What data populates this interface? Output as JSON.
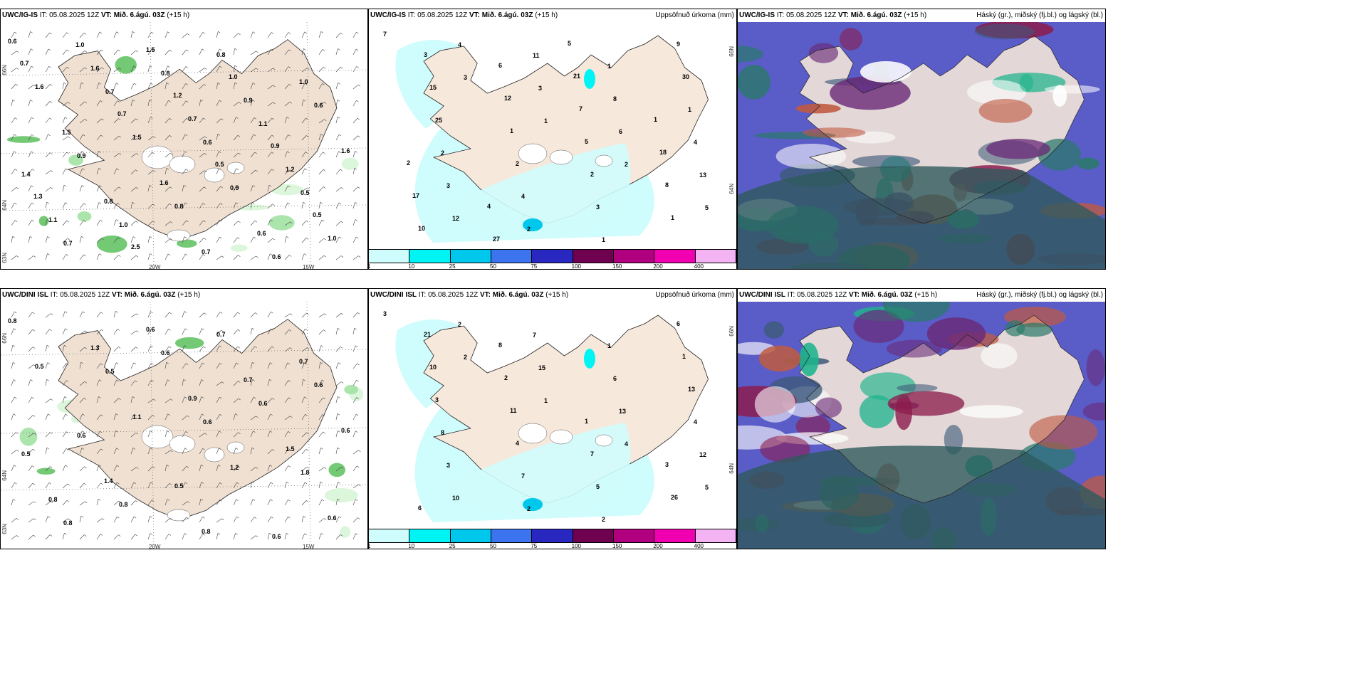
{
  "rows": [
    {
      "wind_panel": {
        "model": "UWC/IG-IS",
        "it_label": "IT:",
        "it": "05.08.2025 12Z",
        "vt_label": "VT:",
        "vt": "Mið. 6.ágú. 03Z",
        "lead": "(+15 h)"
      },
      "precip_panel": {
        "model": "UWC/IG-IS",
        "it_label": "IT:",
        "it": "05.08.2025 12Z",
        "vt_label": "VT:",
        "vt": "Mið. 6.ágú. 03Z",
        "lead": "(+15 h)",
        "right_title": "Uppsöfnuð úrkoma (mm)"
      },
      "cloud_panel": {
        "model": "UWC/IG-IS",
        "it_label": "IT:",
        "it": "05.08.2025 12Z",
        "vt_label": "VT:",
        "vt": "Mið. 6.ágú. 03Z",
        "lead": "(+15 h)",
        "right_title": "Háský (gr.), miðský (fj.bl.) og lágský (bl.)"
      }
    },
    {
      "wind_panel": {
        "model": "UWC/DINI ISL",
        "it_label": "IT:",
        "it": "05.08.2025 12Z",
        "vt_label": "VT:",
        "vt": "Mið. 6.ágú. 03Z",
        "lead": "(+15 h)"
      },
      "precip_panel": {
        "model": "UWC/DINI ISL",
        "it_label": "IT:",
        "it": "05.08.2025 12Z",
        "vt_label": "VT:",
        "vt": "Mið. 6.ágú. 03Z",
        "lead": "(+15 h)",
        "right_title": "Uppsöfnuð úrkoma (mm)"
      },
      "cloud_panel": {
        "model": "UWC/DINI ISL",
        "it_label": "IT:",
        "it": "05.08.2025 12Z",
        "vt_label": "VT:",
        "vt": "Mið. 6.ágú. 03Z",
        "lead": "(+15 h)",
        "right_title": "Háský (gr.), miðský (fj.bl.) og lágský (bl.)"
      }
    }
  ],
  "axis_labels": {
    "lat_66": "66N",
    "lat_64": "64N",
    "lat_63": "63N",
    "lon_20": "20W",
    "lon_15": "15W"
  },
  "colorbar": {
    "ticks": [
      "1",
      "10",
      "25",
      "50",
      "75",
      "100",
      "150",
      "200",
      "400"
    ],
    "colors": [
      "#cffcfc",
      "#00f4f4",
      "#00c8ec",
      "#3c74f0",
      "#2828c0",
      "#700050",
      "#b00080",
      "#f000b0",
      "#f4b4f4"
    ]
  },
  "wind_values_top": [
    "0.6",
    "0.7",
    "0.6",
    "0.5",
    "0.7",
    "0.8",
    "1.1",
    "1.4",
    "1.0",
    "0.8",
    "0.6",
    "0.9",
    "0.8",
    "0.6",
    "1.6",
    "1.5",
    "0.9",
    "1.0",
    "1.6",
    "0.7",
    "1.2",
    "1.1",
    "1.5",
    "0.9",
    "1.6",
    "0.8",
    "0.7",
    "1.0",
    "1.5",
    "1.6",
    "0.6",
    "0.7",
    "0.7",
    "0.5",
    "0.5",
    "1.0",
    "1.2",
    "0.9",
    "1.3",
    "2.5",
    "1.0"
  ],
  "wind_values_bottom": [
    "0.8",
    "0.5",
    "0.6",
    "1.8",
    "0.8",
    "0.6",
    "0.6",
    "0.5",
    "0.8",
    "0.7",
    "0.6",
    "0.6",
    "0.5",
    "0.6",
    "0.5",
    "1.1",
    "1.2",
    "0.6",
    "1.3",
    "0.9",
    "1.5",
    "0.8",
    "0.6",
    "0.7",
    "0.6",
    "1.4",
    "0.8",
    "0.7"
  ],
  "precip_values_top": [
    "7",
    "3",
    "1",
    "2",
    "5",
    "4",
    "3",
    "6",
    "13",
    "12",
    "11",
    "8",
    "4",
    "3",
    "2",
    "1",
    "1",
    "2",
    "4",
    "1",
    "30",
    "25",
    "2",
    "3",
    "9",
    "15",
    "1",
    "2",
    "1",
    "3",
    "12",
    "5",
    "8",
    "10",
    "6",
    "7",
    "18",
    "17",
    "27",
    "21",
    "1",
    "2",
    "4",
    "5"
  ],
  "precip_values_bottom": [
    "3",
    "2",
    "1",
    "4",
    "5",
    "2",
    "15",
    "13",
    "12",
    "10",
    "7",
    "6",
    "4",
    "3",
    "2",
    "1",
    "13",
    "8",
    "7",
    "2",
    "1",
    "3",
    "4",
    "5",
    "6",
    "10",
    "11",
    "7",
    "26",
    "21",
    "2",
    "1",
    "3",
    "6",
    "8"
  ]
}
